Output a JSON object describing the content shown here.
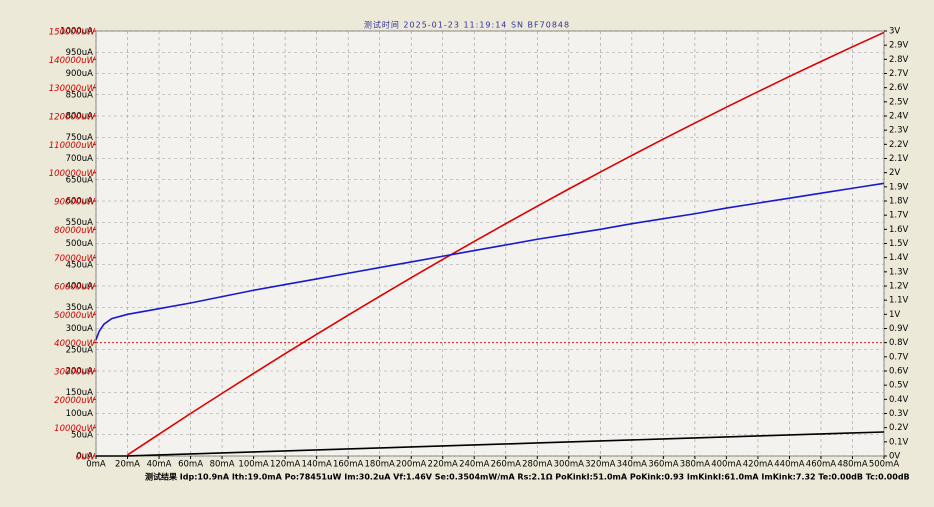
{
  "chart_data": {
    "type": "line",
    "title": "测试时间 2025-01-23 11:19:14  SN BF70848",
    "result": "测试结果 Idp:10.9nA Ith:19.0mA Po:78451uW Im:30.2uA Vf:1.46V Se:0.3504mW/mA Rs:2.1Ω PoKinkI:51.0mA PoKink:0.93 ImKinkI:61.0mA ImKink:7.32 Te:0.00dB Tc:0.00dB",
    "x": [
      0,
      2,
      5,
      10,
      20,
      40,
      60,
      80,
      100,
      120,
      140,
      160,
      180,
      200,
      220,
      240,
      260,
      280,
      300,
      320,
      340,
      360,
      380,
      400,
      420,
      440,
      460,
      480,
      500
    ],
    "series": [
      {
        "name": "Po",
        "color": "#dd0000",
        "axis": "y3",
        "values": [
          null,
          null,
          null,
          null,
          370,
          7700,
          15000,
          22100,
          29150,
          36100,
          42950,
          49700,
          56360,
          62920,
          69380,
          75740,
          82000,
          88170,
          94230,
          100200,
          106070,
          111850,
          117520,
          123100,
          128580,
          133960,
          139240,
          144420,
          149500
        ]
      },
      {
        "name": "Vf",
        "color": "#1a1acc",
        "axis": "y2",
        "values": [
          0.82,
          0.88,
          0.93,
          0.97,
          1.0,
          1.04,
          1.08,
          1.125,
          1.17,
          1.21,
          1.25,
          1.29,
          1.33,
          1.37,
          1.41,
          1.45,
          1.49,
          1.53,
          1.565,
          1.6,
          1.64,
          1.675,
          1.71,
          1.75,
          1.785,
          1.82,
          1.855,
          1.89,
          1.925
        ]
      },
      {
        "name": "Im",
        "color": "#000000",
        "axis": "y",
        "values": [
          0,
          0,
          0,
          0,
          0.1,
          2.5,
          4.8,
          7.2,
          9.5,
          11.9,
          14.2,
          16.6,
          18.9,
          21.3,
          23.6,
          26,
          28.3,
          30.7,
          33,
          35.4,
          37.7,
          40.1,
          42.4,
          44.8,
          47.1,
          49.5,
          51.8,
          54.2,
          56.5
        ]
      }
    ],
    "ref_lines": [
      {
        "axis": "y3",
        "value": 40000,
        "color": "#cc0000"
      }
    ],
    "xlim": [
      0,
      500
    ],
    "xticks": [
      {
        "value": 0,
        "label": "0mA"
      },
      {
        "value": 20,
        "label": "20mA"
      },
      {
        "value": 40,
        "label": "40mA"
      },
      {
        "value": 60,
        "label": "60mA"
      },
      {
        "value": 80,
        "label": "80mA"
      },
      {
        "value": 100,
        "label": "100mA"
      },
      {
        "value": 120,
        "label": "120mA"
      },
      {
        "value": 140,
        "label": "140mA"
      },
      {
        "value": 160,
        "label": "160mA"
      },
      {
        "value": 180,
        "label": "180mA"
      },
      {
        "value": 200,
        "label": "200mA"
      },
      {
        "value": 220,
        "label": "220mA"
      },
      {
        "value": 240,
        "label": "240mA"
      },
      {
        "value": 260,
        "label": "260mA"
      },
      {
        "value": 280,
        "label": "280mA"
      },
      {
        "value": 300,
        "label": "300mA"
      },
      {
        "value": 320,
        "label": "320mA"
      },
      {
        "value": 340,
        "label": "340mA"
      },
      {
        "value": 360,
        "label": "360mA"
      },
      {
        "value": 380,
        "label": "380mA"
      },
      {
        "value": 400,
        "label": "400mA"
      },
      {
        "value": 420,
        "label": "420mA"
      },
      {
        "value": 440,
        "label": "440mA"
      },
      {
        "value": 460,
        "label": "460mA"
      },
      {
        "value": 480,
        "label": "480mA"
      },
      {
        "value": 500,
        "label": "500mA"
      }
    ],
    "ylim": [
      0,
      1000
    ],
    "yticks": [
      {
        "value": 0,
        "label": "0uA"
      },
      {
        "value": 50,
        "label": "50uA"
      },
      {
        "value": 100,
        "label": "100uA"
      },
      {
        "value": 150,
        "label": "150uA"
      },
      {
        "value": 200,
        "label": "200uA"
      },
      {
        "value": 250,
        "label": "250uA"
      },
      {
        "value": 300,
        "label": "300uA"
      },
      {
        "value": 350,
        "label": "350uA"
      },
      {
        "value": 400,
        "label": "400uA"
      },
      {
        "value": 450,
        "label": "450uA"
      },
      {
        "value": 500,
        "label": "500uA"
      },
      {
        "value": 550,
        "label": "550uA"
      },
      {
        "value": 600,
        "label": "600uA"
      },
      {
        "value": 650,
        "label": "650uA"
      },
      {
        "value": 700,
        "label": "700uA"
      },
      {
        "value": 750,
        "label": "750uA"
      },
      {
        "value": 800,
        "label": "800uA"
      },
      {
        "value": 850,
        "label": "850uA"
      },
      {
        "value": 900,
        "label": "900uA"
      },
      {
        "value": 950,
        "label": "950uA"
      },
      {
        "value": 1000,
        "label": "1000uA"
      }
    ],
    "y3lim": [
      0,
      150000
    ],
    "y3ticks": [
      {
        "value": 0,
        "label": "0uW"
      },
      {
        "value": 10000,
        "label": "10000uW"
      },
      {
        "value": 20000,
        "label": "20000uW"
      },
      {
        "value": 30000,
        "label": "30000uW"
      },
      {
        "value": 40000,
        "label": "40000uW"
      },
      {
        "value": 50000,
        "label": "50000uW"
      },
      {
        "value": 60000,
        "label": "60000uW"
      },
      {
        "value": 70000,
        "label": "70000uW"
      },
      {
        "value": 80000,
        "label": "80000uW"
      },
      {
        "value": 90000,
        "label": "90000uW"
      },
      {
        "value": 100000,
        "label": "100000uW"
      },
      {
        "value": 110000,
        "label": "110000uW"
      },
      {
        "value": 120000,
        "label": "120000uW"
      },
      {
        "value": 130000,
        "label": "130000uW"
      },
      {
        "value": 140000,
        "label": "140000uW"
      },
      {
        "value": 150000,
        "label": "150000uW"
      }
    ],
    "y2lim": [
      0,
      3
    ],
    "y2ticks": [
      {
        "value": 0,
        "label": "0V"
      },
      {
        "value": 0.1,
        "label": "0.1V"
      },
      {
        "value": 0.2,
        "label": "0.2V"
      },
      {
        "value": 0.3,
        "label": "0.3V"
      },
      {
        "value": 0.4,
        "label": "0.4V"
      },
      {
        "value": 0.5,
        "label": "0.5V"
      },
      {
        "value": 0.6,
        "label": "0.6V"
      },
      {
        "value": 0.7,
        "label": "0.7V"
      },
      {
        "value": 0.8,
        "label": "0.8V"
      },
      {
        "value": 0.9,
        "label": "0.9V"
      },
      {
        "value": 1,
        "label": "1V"
      },
      {
        "value": 1.1,
        "label": "1.1V"
      },
      {
        "value": 1.2,
        "label": "1.2V"
      },
      {
        "value": 1.3,
        "label": "1.3V"
      },
      {
        "value": 1.4,
        "label": "1.4V"
      },
      {
        "value": 1.5,
        "label": "1.5V"
      },
      {
        "value": 1.6,
        "label": "1.6V"
      },
      {
        "value": 1.7,
        "label": "1.7V"
      },
      {
        "value": 1.8,
        "label": "1.8V"
      },
      {
        "value": 1.9,
        "label": "1.9V"
      },
      {
        "value": 2,
        "label": "2V"
      },
      {
        "value": 2.1,
        "label": "2.1V"
      },
      {
        "value": 2.2,
        "label": "2.2V"
      },
      {
        "value": 2.3,
        "label": "2.3V"
      },
      {
        "value": 2.4,
        "label": "2.4V"
      },
      {
        "value": 2.5,
        "label": "2.5V"
      },
      {
        "value": 2.6,
        "label": "2.6V"
      },
      {
        "value": 2.7,
        "label": "2.7V"
      },
      {
        "value": 2.8,
        "label": "2.8V"
      },
      {
        "value": 2.9,
        "label": "2.9V"
      },
      {
        "value": 3,
        "label": "3V"
      }
    ],
    "grid": true
  }
}
